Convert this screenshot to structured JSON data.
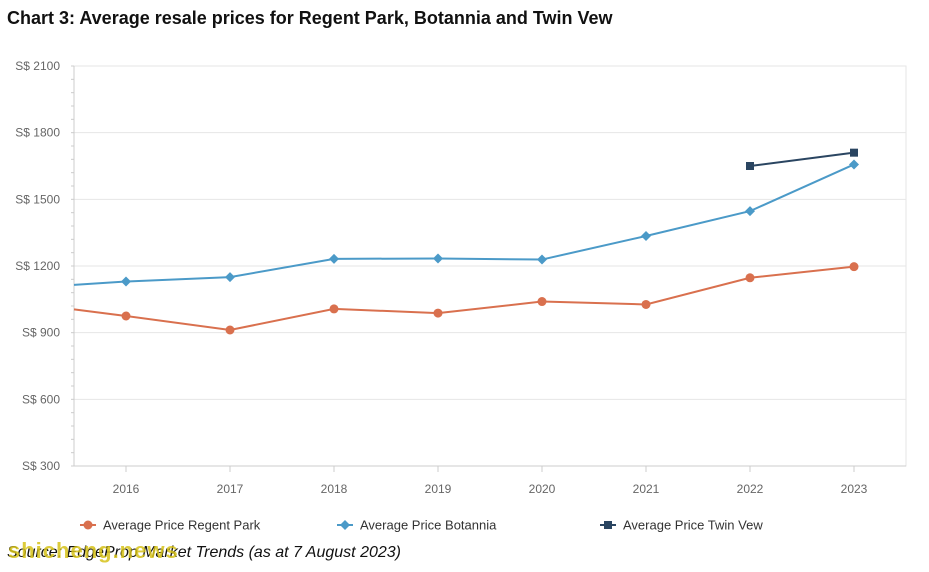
{
  "chart_data": {
    "type": "line",
    "title": "Chart 3: Average resale prices for Regent Park, Botannia and Twin Vew",
    "categories": [
      "2016",
      "2017",
      "2018",
      "2019",
      "2020",
      "2021",
      "2022",
      "2023"
    ],
    "y_tick_labels": [
      "S$ 300",
      "S$ 600",
      "S$ 900",
      "S$ 1200",
      "S$ 1500",
      "S$ 1800",
      "S$ 2100"
    ],
    "y_ticks": [
      300,
      600,
      900,
      1200,
      1500,
      1800,
      2100
    ],
    "ylim": [
      300,
      2100
    ],
    "xlabel": "",
    "ylabel": "",
    "grid": true,
    "legend_position": "bottom",
    "series": [
      {
        "name": "Average Price Regent Park",
        "color": "#d9704e",
        "marker": "circle",
        "x": [
          2015.5,
          2016,
          2017,
          2018,
          2019,
          2020,
          2021,
          2022,
          2023
        ],
        "values": [
          1005,
          975,
          912,
          1007,
          988,
          1040,
          1027,
          1147,
          1197
        ]
      },
      {
        "name": "Average Price Botannia",
        "color": "#4b9ac8",
        "marker": "diamond",
        "x": [
          2015.5,
          2016,
          2017,
          2018,
          2019,
          2020,
          2021,
          2022,
          2023
        ],
        "values": [
          1115,
          1130,
          1150,
          1232,
          1234,
          1229,
          1335,
          1447,
          1657
        ]
      },
      {
        "name": "Average Price Twin Vew",
        "color": "#2a4561",
        "marker": "square",
        "x": [
          2022,
          2023
        ],
        "values": [
          1650,
          1710
        ]
      }
    ]
  },
  "source_text": "Source: EdgeProp Market Trends (as at 7 August 2023)",
  "watermark_text": "shicheng.news"
}
